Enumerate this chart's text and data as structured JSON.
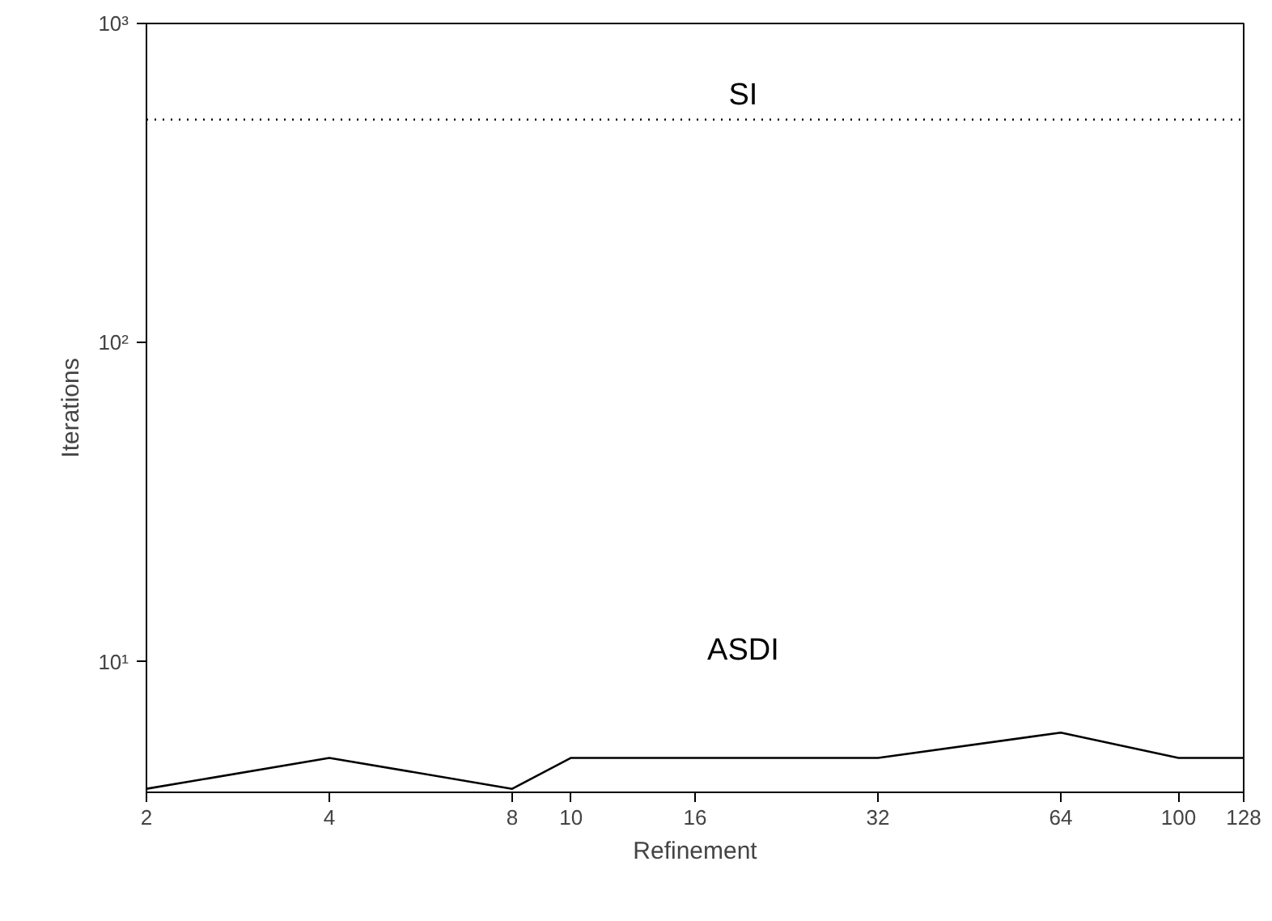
{
  "chart_data": {
    "type": "line",
    "xlabel": "Refinement",
    "ylabel": "Iterations",
    "log": "xy",
    "grid": false,
    "legend": false,
    "x": [
      2,
      4,
      8,
      10,
      16,
      32,
      64,
      100,
      128
    ],
    "xlim": [
      2,
      128
    ],
    "xticks": [
      2,
      4,
      8,
      10,
      16,
      32,
      64,
      100,
      128
    ],
    "ylim": [
      3.9,
      1000
    ],
    "yticks": [
      {
        "value": 10,
        "label": "10¹"
      },
      {
        "value": 100,
        "label": "10²"
      },
      {
        "value": 1000,
        "label": "10³"
      }
    ],
    "series": [
      {
        "name": "SI",
        "color": "#000000",
        "line_style": "dotted",
        "values": [
          500,
          500,
          500,
          500,
          500,
          500,
          500,
          500,
          500
        ]
      },
      {
        "name": "ASDI",
        "color": "#000000",
        "line_style": "solid",
        "values": [
          4,
          5,
          4,
          5,
          5,
          5,
          6,
          5,
          5
        ]
      }
    ]
  }
}
